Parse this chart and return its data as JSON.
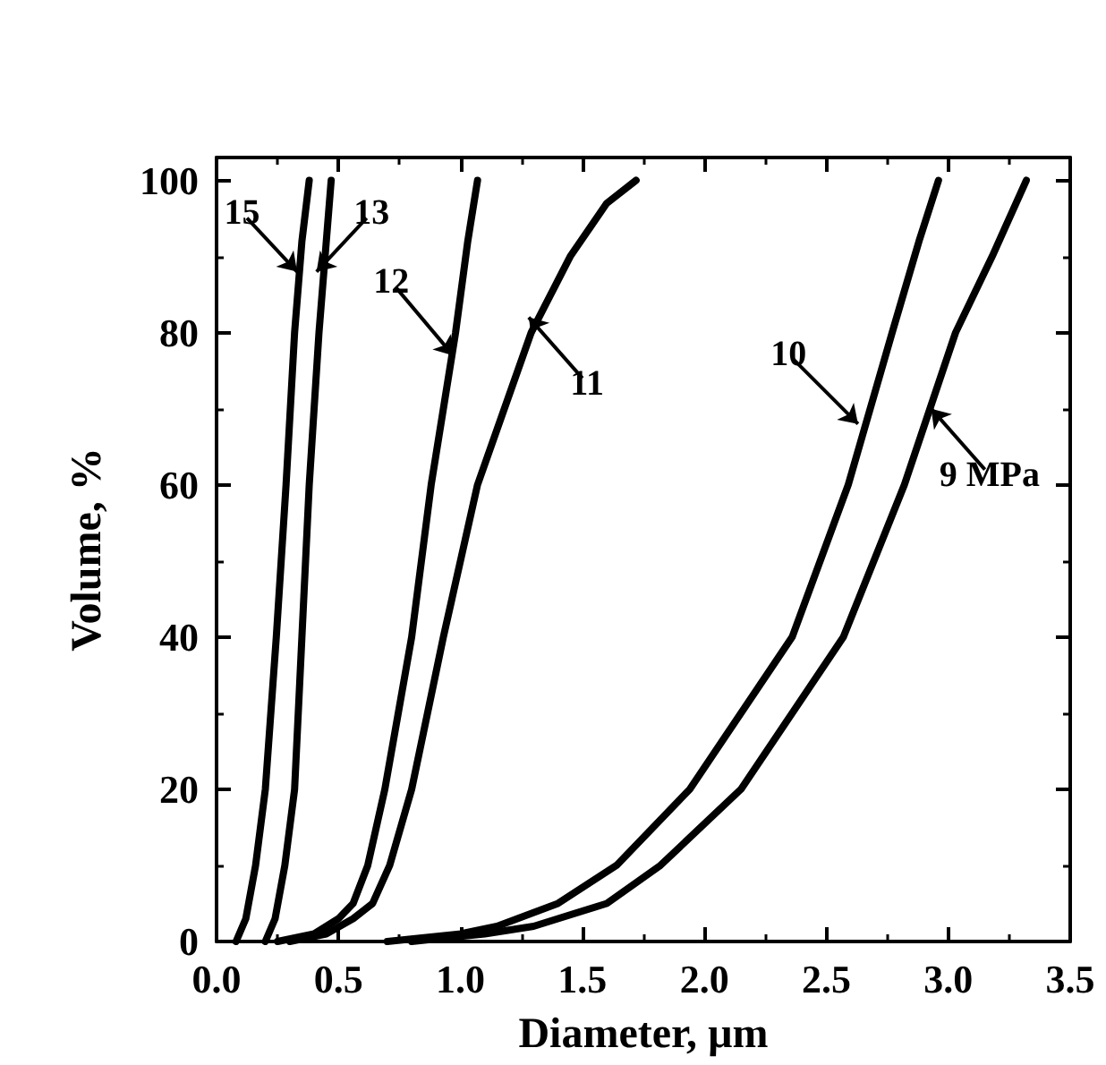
{
  "chart_data": {
    "type": "line",
    "xlabel": "Diameter, µm",
    "ylabel": "Volume, %",
    "xlim": [
      0,
      3.5
    ],
    "xticks": [
      {
        "value": 0,
        "label": "0.0"
      },
      0.5,
      {
        "value": 1,
        "label": "1.0"
      },
      1.5,
      {
        "value": 2,
        "label": "2.0"
      },
      2.5,
      {
        "value": 3,
        "label": "3.0"
      },
      3.5
    ],
    "ylim": [
      0,
      103
    ],
    "yticks": [
      0,
      20,
      40,
      60,
      80,
      100
    ],
    "grid": false,
    "marker": "none",
    "line_style": "solid",
    "series": [
      {
        "color": "#000000",
        "x": [
          0.08,
          0.12,
          0.16,
          0.2,
          0.245,
          0.285,
          0.32,
          0.35,
          0.38
        ],
        "values": [
          0,
          3,
          10,
          20,
          40,
          60,
          80,
          92,
          100
        ]
      },
      {
        "color": "#000000",
        "x": [
          0.2,
          0.24,
          0.28,
          0.32,
          0.35,
          0.38,
          0.42,
          0.45,
          0.47
        ],
        "values": [
          0,
          3,
          10,
          20,
          40,
          60,
          80,
          92,
          100
        ]
      },
      {
        "color": "#000000",
        "x": [
          0.25,
          0.4,
          0.5,
          0.56,
          0.62,
          0.69,
          0.8,
          0.88,
          0.98,
          1.03,
          1.07
        ],
        "values": [
          0,
          1,
          3,
          5,
          10,
          20,
          40,
          60,
          80,
          92,
          100
        ]
      },
      {
        "color": "#000000",
        "x": [
          0.3,
          0.45,
          0.56,
          0.64,
          0.71,
          0.8,
          0.93,
          1.07,
          1.29,
          1.45,
          1.6,
          1.72
        ],
        "values": [
          0,
          1,
          3,
          5,
          10,
          20,
          40,
          60,
          80,
          90,
          97,
          100
        ]
      },
      {
        "color": "#000000",
        "x": [
          0.7,
          1.0,
          1.15,
          1.4,
          1.64,
          1.94,
          2.36,
          2.59,
          2.77,
          2.88,
          2.96
        ],
        "values": [
          0,
          1,
          2,
          5,
          10,
          20,
          40,
          60,
          80,
          92,
          100
        ]
      },
      {
        "color": "#000000",
        "x": [
          0.8,
          1.1,
          1.3,
          1.6,
          1.82,
          2.15,
          2.57,
          2.82,
          3.03,
          3.18,
          3.32
        ],
        "values": [
          0,
          1,
          2,
          5,
          10,
          20,
          40,
          60,
          80,
          90,
          100
        ]
      }
    ],
    "annotations": [
      {
        "text": "15",
        "x": 0.33,
        "y": 88
      },
      {
        "text": "13",
        "x": 0.41,
        "y": 88
      },
      {
        "text": "12",
        "x": 0.97,
        "y": 77
      },
      {
        "text": "11",
        "x": 1.28,
        "y": 82
      },
      {
        "text": "10",
        "x": 2.63,
        "y": 68
      },
      {
        "text": "9 MPa",
        "x": 2.93,
        "y": 70
      }
    ]
  }
}
